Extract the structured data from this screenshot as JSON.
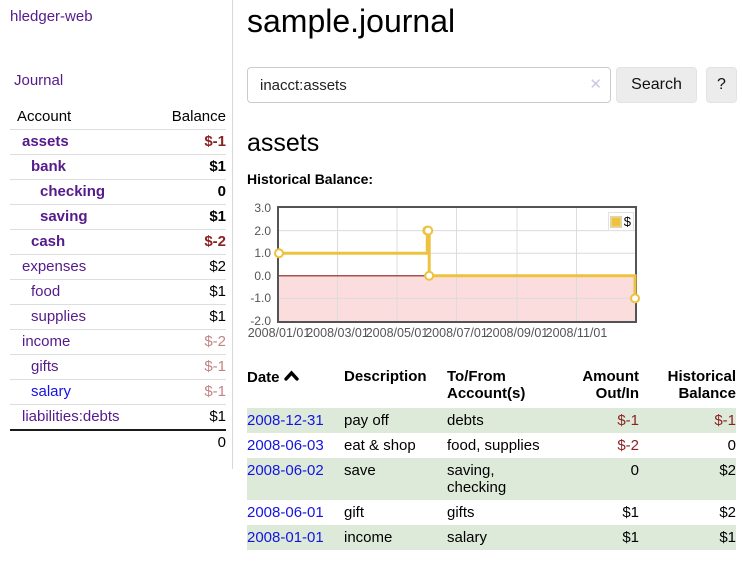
{
  "app": {
    "title": "hledger-web"
  },
  "colors": {
    "purple": "#551a8b",
    "blue": "#1414e0",
    "neg": "#8b2222",
    "rose": "#c18486",
    "green-row": "#ddead9",
    "gold": "#edc240",
    "pink": "#fcdddd",
    "zero": "#8b1a1a",
    "grid": "#dcdcdc",
    "tick": "#545454",
    "btn-bg": "#ececec",
    "input-border": "#cccccc",
    "row-line": "#dddddd",
    "plot-border": "#545454"
  },
  "sidebar": {
    "journal_label": "Journal",
    "table": {
      "headers": {
        "account": "Account",
        "balance": "Balance"
      },
      "rows": [
        {
          "account": "assets",
          "balance": "$-1"
        },
        {
          "account": "bank",
          "balance": "$1"
        },
        {
          "account": "checking",
          "balance": "0"
        },
        {
          "account": "saving",
          "balance": "$1"
        },
        {
          "account": "cash",
          "balance": "$-2"
        },
        {
          "account": "expenses",
          "balance": "$2"
        },
        {
          "account": "food",
          "balance": "$1"
        },
        {
          "account": "supplies",
          "balance": "$1"
        },
        {
          "account": "income",
          "balance": "$-2"
        },
        {
          "account": "gifts",
          "balance": "$-1"
        },
        {
          "account": "salary",
          "balance": "$-1"
        },
        {
          "account": "liabilities:debts",
          "balance": "$1"
        }
      ],
      "total": "0"
    }
  },
  "main": {
    "title": "sample.journal",
    "search": {
      "value": "inacct:assets",
      "clear_icon": "✕",
      "button_label": "Search",
      "help_label": "?"
    },
    "account_heading": "assets",
    "chart_caption": "Historical Balance:"
  },
  "chart_data": {
    "type": "line",
    "step": true,
    "title": "Historical Balance:",
    "xlim": [
      "2008-01-01",
      "2008-12-31"
    ],
    "ylim": [
      -2.0,
      3.0
    ],
    "x_ticks": [
      "2008/01/01",
      "2008/03/01",
      "2008/05/01",
      "2008/07/01",
      "2008/09/01",
      "2008/11/01"
    ],
    "y_ticks": [
      3.0,
      2.0,
      1.0,
      0.0,
      -1.0,
      -2.0
    ],
    "grid": true,
    "legend_position": "top-right",
    "series": [
      {
        "name": "$",
        "color": "#edc240",
        "points": [
          [
            "2008-01-01",
            1
          ],
          [
            "2008-06-01",
            2
          ],
          [
            "2008-06-02",
            2
          ],
          [
            "2008-06-03",
            0
          ],
          [
            "2008-12-31",
            -1
          ]
        ]
      }
    ],
    "negative_region_fill": "#fcdddd",
    "zero_line_color": "#8b1a1a",
    "grid_color": "#dcdcdc"
  },
  "register": {
    "headers": {
      "date": "Date",
      "description": "Description",
      "accounts_l1": "To/From",
      "accounts_l2": "Account(s)",
      "amount_l1": "Amount",
      "amount_l2": "Out/In",
      "balance_l1": "Historical",
      "balance_l2": "Balance"
    },
    "rows": [
      {
        "date": "2008-12-31",
        "description": "pay off",
        "accounts": "debts",
        "amount": "$-1",
        "balance": "$-1"
      },
      {
        "date": "2008-06-03",
        "description": "eat & shop",
        "accounts": "food, supplies",
        "amount": "$-2",
        "balance": "0"
      },
      {
        "date": "2008-06-02",
        "description": "save",
        "accounts": "saving, checking",
        "amount": "0",
        "balance": "$2"
      },
      {
        "date": "2008-06-01",
        "description": "gift",
        "accounts": "gifts",
        "amount": "$1",
        "balance": "$2"
      },
      {
        "date": "2008-01-01",
        "description": "income",
        "accounts": "salary",
        "amount": "$1",
        "balance": "$1"
      }
    ]
  }
}
